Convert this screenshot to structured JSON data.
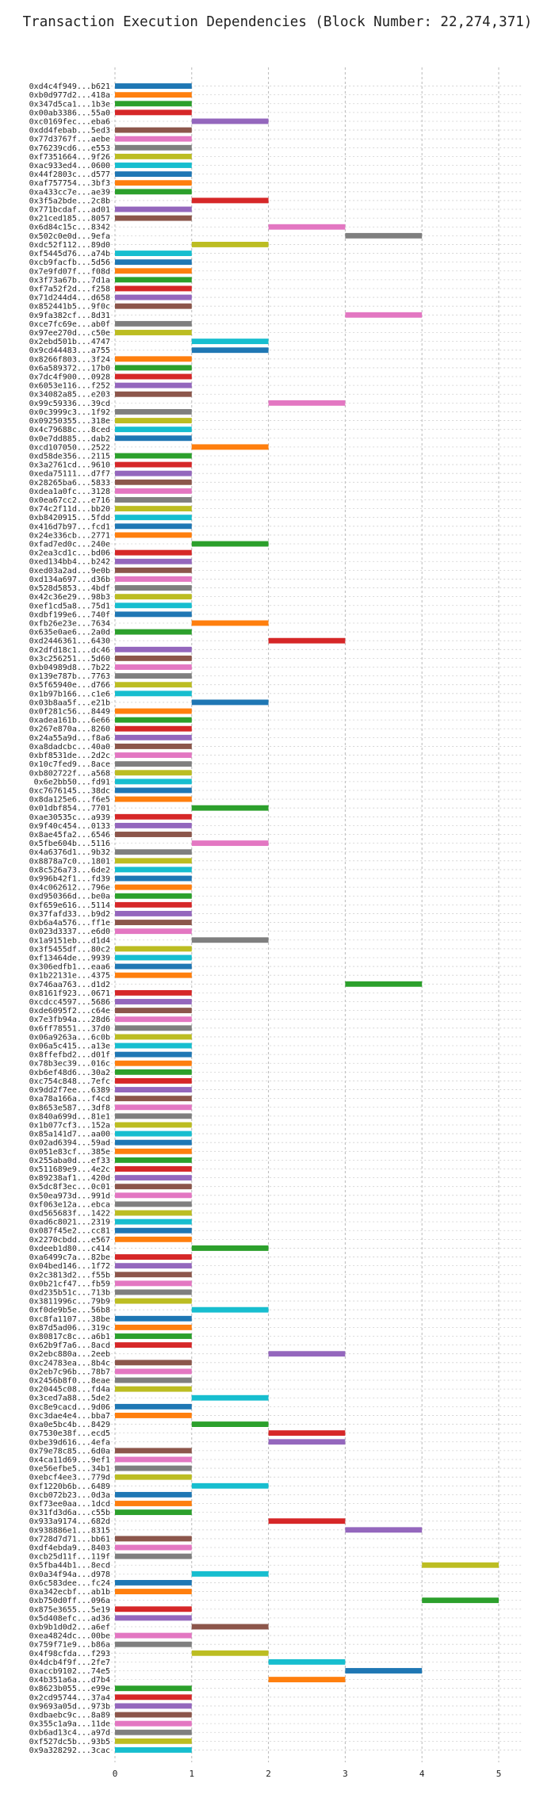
{
  "chart_data": {
    "type": "bar",
    "orientation": "horizontal",
    "title": "Transaction Execution Dependencies (Block Number: 22,274,371)",
    "xlabel": "",
    "ylabel": "",
    "xlim": [
      -0.05,
      5.3
    ],
    "xticks": [
      0,
      1,
      2,
      3,
      4,
      5
    ],
    "grid": true,
    "palette": [
      "#1f77b4",
      "#ff7f0e",
      "#2ca02c",
      "#d62728",
      "#9467bd",
      "#8c564b",
      "#e377c2",
      "#7f7f7f",
      "#bcbd22",
      "#17becf"
    ],
    "transactions": [
      {
        "label": "0xd4c4f949...b621",
        "start": 0,
        "end": 1
      },
      {
        "label": "0xb0d977d2...418a",
        "start": 0,
        "end": 1
      },
      {
        "label": "0x347d5ca1...1b3e",
        "start": 0,
        "end": 1
      },
      {
        "label": "0x00ab3386...55a0",
        "start": 0,
        "end": 1
      },
      {
        "label": "0xc0169fec...eba6",
        "start": 1,
        "end": 2
      },
      {
        "label": "0xdd4febab...5ed3",
        "start": 0,
        "end": 1
      },
      {
        "label": "0x77d3767f...aebe",
        "start": 0,
        "end": 1
      },
      {
        "label": "0x76239cd6...e553",
        "start": 0,
        "end": 1
      },
      {
        "label": "0xf7351664...9f26",
        "start": 0,
        "end": 1
      },
      {
        "label": "0xac933ed4...0600",
        "start": 0,
        "end": 1
      },
      {
        "label": "0x44f2803c...d577",
        "start": 0,
        "end": 1
      },
      {
        "label": "0xaf757754...3bf3",
        "start": 0,
        "end": 1
      },
      {
        "label": "0xa433cc7e...ae39",
        "start": 0,
        "end": 1
      },
      {
        "label": "0x3f5a2bde...2c8b",
        "start": 1,
        "end": 2
      },
      {
        "label": "0x771bcdaf...ad01",
        "start": 0,
        "end": 1
      },
      {
        "label": "0x21ced185...8057",
        "start": 0,
        "end": 1
      },
      {
        "label": "0x6d84c15c...8342",
        "start": 2,
        "end": 3
      },
      {
        "label": "0x502c0e0d...9efa",
        "start": 3,
        "end": 4
      },
      {
        "label": "0xdc52f112...89d0",
        "start": 1,
        "end": 2
      },
      {
        "label": "0xf5445d76...a74b",
        "start": 0,
        "end": 1
      },
      {
        "label": "0xcb9facfb...5d56",
        "start": 0,
        "end": 1
      },
      {
        "label": "0x7e9fd07f...f08d",
        "start": 0,
        "end": 1
      },
      {
        "label": "0x3f73a67b...7d1a",
        "start": 0,
        "end": 1
      },
      {
        "label": "0xf7a52f2d...f258",
        "start": 0,
        "end": 1
      },
      {
        "label": "0x71d244d4...d658",
        "start": 0,
        "end": 1
      },
      {
        "label": "0x852441b5...9f0c",
        "start": 0,
        "end": 1
      },
      {
        "label": "0x9fa382cf...8d31",
        "start": 3,
        "end": 4
      },
      {
        "label": "0xce7fc69e...ab0f",
        "start": 0,
        "end": 1
      },
      {
        "label": "0x97ee270d...c50e",
        "start": 0,
        "end": 1
      },
      {
        "label": "0x2ebd501b...4747",
        "start": 1,
        "end": 2
      },
      {
        "label": "0x9cd44483...a755",
        "start": 1,
        "end": 2
      },
      {
        "label": "0x8266f803...3f24",
        "start": 0,
        "end": 1
      },
      {
        "label": "0x6a589372...17b0",
        "start": 0,
        "end": 1
      },
      {
        "label": "0x7dc4f900...0928",
        "start": 0,
        "end": 1
      },
      {
        "label": "0x6053e116...f252",
        "start": 0,
        "end": 1
      },
      {
        "label": "0x34082a85...e203",
        "start": 0,
        "end": 1
      },
      {
        "label": "0x99c59336...39cd",
        "start": 2,
        "end": 3
      },
      {
        "label": "0x0c3999c3...1f92",
        "start": 0,
        "end": 1
      },
      {
        "label": "0x09250355...318e",
        "start": 0,
        "end": 1
      },
      {
        "label": "0x4c79688c...8ced",
        "start": 0,
        "end": 1
      },
      {
        "label": "0x0e7dd885...dab2",
        "start": 0,
        "end": 1
      },
      {
        "label": "0xcd107050...2522",
        "start": 1,
        "end": 2
      },
      {
        "label": "0xd58de356...2115",
        "start": 0,
        "end": 1
      },
      {
        "label": "0x3a2761cd...9610",
        "start": 0,
        "end": 1
      },
      {
        "label": "0xeda75111...d7f7",
        "start": 0,
        "end": 1
      },
      {
        "label": "0x28265ba6...5833",
        "start": 0,
        "end": 1
      },
      {
        "label": "0xdea1a0fc...3128",
        "start": 0,
        "end": 1
      },
      {
        "label": "0x0ea67cc2...e716",
        "start": 0,
        "end": 1
      },
      {
        "label": "0x74c2f11d...bb20",
        "start": 0,
        "end": 1
      },
      {
        "label": "0xb8420915...5fdd",
        "start": 0,
        "end": 1
      },
      {
        "label": "0x416d7b97...fcd1",
        "start": 0,
        "end": 1
      },
      {
        "label": "0x24e336cb...2771",
        "start": 0,
        "end": 1
      },
      {
        "label": "0xfad7ed0c...240e",
        "start": 1,
        "end": 2
      },
      {
        "label": "0x2ea3cd1c...bd06",
        "start": 0,
        "end": 1
      },
      {
        "label": "0xed134bb4...b242",
        "start": 0,
        "end": 1
      },
      {
        "label": "0xed03a2ad...9e0b",
        "start": 0,
        "end": 1
      },
      {
        "label": "0xd134a697...d36b",
        "start": 0,
        "end": 1
      },
      {
        "label": "0x528d5853...4bdf",
        "start": 0,
        "end": 1
      },
      {
        "label": "0x42c36e29...98b3",
        "start": 0,
        "end": 1
      },
      {
        "label": "0xef1cd5a8...75d1",
        "start": 0,
        "end": 1
      },
      {
        "label": "0xdbf199e6...740f",
        "start": 0,
        "end": 1
      },
      {
        "label": "0xfb26e23e...7634",
        "start": 1,
        "end": 2
      },
      {
        "label": "0x635e0ae6...2a0d",
        "start": 0,
        "end": 1
      },
      {
        "label": "0xd2446361...6430",
        "start": 2,
        "end": 3
      },
      {
        "label": "0x2dfd18c1...dc46",
        "start": 0,
        "end": 1
      },
      {
        "label": "0x3c256251...5d60",
        "start": 0,
        "end": 1
      },
      {
        "label": "0xb04989d8...7b22",
        "start": 0,
        "end": 1
      },
      {
        "label": "0x139e787b...7763",
        "start": 0,
        "end": 1
      },
      {
        "label": "0x5f65940e...d766",
        "start": 0,
        "end": 1
      },
      {
        "label": "0x1b97b166...c1e6",
        "start": 0,
        "end": 1
      },
      {
        "label": "0x03b8aa5f...e21b",
        "start": 1,
        "end": 2
      },
      {
        "label": "0x0f281c56...8449",
        "start": 0,
        "end": 1
      },
      {
        "label": "0xadea161b...6e66",
        "start": 0,
        "end": 1
      },
      {
        "label": "0x267e870a...8260",
        "start": 0,
        "end": 1
      },
      {
        "label": "0x24a55a9d...f8a6",
        "start": 0,
        "end": 1
      },
      {
        "label": "0xa8dadcbc...40a0",
        "start": 0,
        "end": 1
      },
      {
        "label": "0xbf8531de...2d2c",
        "start": 0,
        "end": 1
      },
      {
        "label": "0x10c7fed9...8ace",
        "start": 0,
        "end": 1
      },
      {
        "label": "0xb802722f...a568",
        "start": 0,
        "end": 1
      },
      {
        "label": "0x6e2bb50...fd91",
        "start": 0,
        "end": 1
      },
      {
        "label": "0xc7676145...38dc",
        "start": 0,
        "end": 1
      },
      {
        "label": "0x8da125e6...f6e5",
        "start": 0,
        "end": 1
      },
      {
        "label": "0x01dbf854...7701",
        "start": 1,
        "end": 2
      },
      {
        "label": "0xae30535c...a939",
        "start": 0,
        "end": 1
      },
      {
        "label": "0x9f40c454...0133",
        "start": 0,
        "end": 1
      },
      {
        "label": "0x8ae45fa2...6546",
        "start": 0,
        "end": 1
      },
      {
        "label": "0x5fbe604b...5116",
        "start": 1,
        "end": 2
      },
      {
        "label": "0x4a6376d1...9b32",
        "start": 0,
        "end": 1
      },
      {
        "label": "0x8878a7c0...1801",
        "start": 0,
        "end": 1
      },
      {
        "label": "0x8c526a73...6de2",
        "start": 0,
        "end": 1
      },
      {
        "label": "0x996b42f1...fd39",
        "start": 0,
        "end": 1
      },
      {
        "label": "0x4c062612...796e",
        "start": 0,
        "end": 1
      },
      {
        "label": "0xd950366d...be0a",
        "start": 0,
        "end": 1
      },
      {
        "label": "0xf659e616...5114",
        "start": 0,
        "end": 1
      },
      {
        "label": "0x37fafd33...b9d2",
        "start": 0,
        "end": 1
      },
      {
        "label": "0xb6a4a576...ff1e",
        "start": 0,
        "end": 1
      },
      {
        "label": "0x023d3337...e6d0",
        "start": 0,
        "end": 1
      },
      {
        "label": "0x1a9151eb...d1d4",
        "start": 1,
        "end": 2
      },
      {
        "label": "0x3f5455df...80c2",
        "start": 0,
        "end": 1
      },
      {
        "label": "0xf13464de...9939",
        "start": 0,
        "end": 1
      },
      {
        "label": "0x306edfb1...eaa6",
        "start": 0,
        "end": 1
      },
      {
        "label": "0x1b22131e...4375",
        "start": 0,
        "end": 1
      },
      {
        "label": "0x746aa763...d1d2",
        "start": 3,
        "end": 4
      },
      {
        "label": "0x8161f923...0671",
        "start": 0,
        "end": 1
      },
      {
        "label": "0xcdcc4597...5686",
        "start": 0,
        "end": 1
      },
      {
        "label": "0xde6095f2...c64e",
        "start": 0,
        "end": 1
      },
      {
        "label": "0x7e3fb94a...28d6",
        "start": 0,
        "end": 1
      },
      {
        "label": "0x6ff78551...37d0",
        "start": 0,
        "end": 1
      },
      {
        "label": "0x06a9263a...6c0b",
        "start": 0,
        "end": 1
      },
      {
        "label": "0x06a5c415...a13e",
        "start": 0,
        "end": 1
      },
      {
        "label": "0x8ffefbd2...d01f",
        "start": 0,
        "end": 1
      },
      {
        "label": "0x78b3ec39...016c",
        "start": 0,
        "end": 1
      },
      {
        "label": "0xb6ef48d6...30a2",
        "start": 0,
        "end": 1
      },
      {
        "label": "0xc754c848...7efc",
        "start": 0,
        "end": 1
      },
      {
        "label": "0x9dd2f7ee...6389",
        "start": 0,
        "end": 1
      },
      {
        "label": "0xa78a166a...f4cd",
        "start": 0,
        "end": 1
      },
      {
        "label": "0x8653e587...3df8",
        "start": 0,
        "end": 1
      },
      {
        "label": "0x840a699d...81e1",
        "start": 0,
        "end": 1
      },
      {
        "label": "0x1b077cf3...152a",
        "start": 0,
        "end": 1
      },
      {
        "label": "0x85a141d7...aa00",
        "start": 0,
        "end": 1
      },
      {
        "label": "0x02ad6394...59ad",
        "start": 0,
        "end": 1
      },
      {
        "label": "0x051e83cf...385e",
        "start": 0,
        "end": 1
      },
      {
        "label": "0x255aba0d...ef33",
        "start": 0,
        "end": 1
      },
      {
        "label": "0x511689e9...4e2c",
        "start": 0,
        "end": 1
      },
      {
        "label": "0x89238af1...420d",
        "start": 0,
        "end": 1
      },
      {
        "label": "0x5dc8f3ec...0c01",
        "start": 0,
        "end": 1
      },
      {
        "label": "0x50ea973d...991d",
        "start": 0,
        "end": 1
      },
      {
        "label": "0xf063e12a...ebca",
        "start": 0,
        "end": 1
      },
      {
        "label": "0xd565683f...1422",
        "start": 0,
        "end": 1
      },
      {
        "label": "0xad6c8021...2319",
        "start": 0,
        "end": 1
      },
      {
        "label": "0x087f45e2...cc81",
        "start": 0,
        "end": 1
      },
      {
        "label": "0x2270cbdd...e567",
        "start": 0,
        "end": 1
      },
      {
        "label": "0xdeeb1d80...c414",
        "start": 1,
        "end": 2
      },
      {
        "label": "0xa6499c7a...82be",
        "start": 0,
        "end": 1
      },
      {
        "label": "0x04bed146...1f72",
        "start": 0,
        "end": 1
      },
      {
        "label": "0x2c3813d2...f55b",
        "start": 0,
        "end": 1
      },
      {
        "label": "0x0b21cf47...fb59",
        "start": 0,
        "end": 1
      },
      {
        "label": "0xd235b51c...713b",
        "start": 0,
        "end": 1
      },
      {
        "label": "0x3811996c...79b9",
        "start": 0,
        "end": 1
      },
      {
        "label": "0xf0de9b5e...56b8",
        "start": 1,
        "end": 2
      },
      {
        "label": "0xc8fa1107...38be",
        "start": 0,
        "end": 1
      },
      {
        "label": "0x87d5ad06...319c",
        "start": 0,
        "end": 1
      },
      {
        "label": "0x80817c8c...a6b1",
        "start": 0,
        "end": 1
      },
      {
        "label": "0x62b9f7a6...8acd",
        "start": 0,
        "end": 1
      },
      {
        "label": "0x2ebc880a...2eeb",
        "start": 2,
        "end": 3
      },
      {
        "label": "0xc24783ea...8b4c",
        "start": 0,
        "end": 1
      },
      {
        "label": "0x2eb7c96b...78b7",
        "start": 0,
        "end": 1
      },
      {
        "label": "0x2456b8f0...8eae",
        "start": 0,
        "end": 1
      },
      {
        "label": "0x20445c08...fd4a",
        "start": 0,
        "end": 1
      },
      {
        "label": "0x3ced7a88...5de2",
        "start": 1,
        "end": 2
      },
      {
        "label": "0xc8e9cacd...9d06",
        "start": 0,
        "end": 1
      },
      {
        "label": "0xc3dae4e4...bba7",
        "start": 0,
        "end": 1
      },
      {
        "label": "0xa0e5bc4b...8429",
        "start": 1,
        "end": 2
      },
      {
        "label": "0x7530e38f...ecd5",
        "start": 2,
        "end": 3
      },
      {
        "label": "0xbe39d616...4efa",
        "start": 2,
        "end": 3
      },
      {
        "label": "0x79e78c85...6d0a",
        "start": 0,
        "end": 1
      },
      {
        "label": "0x4ca11d69...9ef1",
        "start": 0,
        "end": 1
      },
      {
        "label": "0xe56efbe5...34b1",
        "start": 0,
        "end": 1
      },
      {
        "label": "0xebcf4ee3...779d",
        "start": 0,
        "end": 1
      },
      {
        "label": "0xf1220b6b...6489",
        "start": 1,
        "end": 2
      },
      {
        "label": "0xcb072b23...0d3a",
        "start": 0,
        "end": 1
      },
      {
        "label": "0xf73ee0aa...1dcd",
        "start": 0,
        "end": 1
      },
      {
        "label": "0x31fd3d6a...c55b",
        "start": 0,
        "end": 1
      },
      {
        "label": "0x933a9174...682d",
        "start": 2,
        "end": 3
      },
      {
        "label": "0x938886e1...8315",
        "start": 3,
        "end": 4
      },
      {
        "label": "0x728d7d71...bb61",
        "start": 0,
        "end": 1
      },
      {
        "label": "0xdf4ebda9...8403",
        "start": 0,
        "end": 1
      },
      {
        "label": "0xcb25d11f...119f",
        "start": 0,
        "end": 1
      },
      {
        "label": "0x5fba44b1...8ecd",
        "start": 4,
        "end": 5
      },
      {
        "label": "0x0a34f94a...d978",
        "start": 1,
        "end": 2
      },
      {
        "label": "0x6c583dee...fc24",
        "start": 0,
        "end": 1
      },
      {
        "label": "0xa342ecbf...ab1b",
        "start": 0,
        "end": 1
      },
      {
        "label": "0xb750d0ff...096a",
        "start": 4,
        "end": 5
      },
      {
        "label": "0x875e3655...5e19",
        "start": 0,
        "end": 1
      },
      {
        "label": "0x5d408efc...ad36",
        "start": 0,
        "end": 1
      },
      {
        "label": "0xb9b1d0d2...a6ef",
        "start": 1,
        "end": 2
      },
      {
        "label": "0xea4824dc...00be",
        "start": 0,
        "end": 1
      },
      {
        "label": "0x759f71e9...b86a",
        "start": 0,
        "end": 1
      },
      {
        "label": "0x4f98cfda...f293",
        "start": 1,
        "end": 2
      },
      {
        "label": "0x4dcb4f9f...2fe7",
        "start": 2,
        "end": 3
      },
      {
        "label": "0xaccb9102...74e5",
        "start": 3,
        "end": 4
      },
      {
        "label": "0x4b351a6a...d7b4",
        "start": 2,
        "end": 3
      },
      {
        "label": "0x8623b055...e99e",
        "start": 0,
        "end": 1
      },
      {
        "label": "0x2cd95744...37a4",
        "start": 0,
        "end": 1
      },
      {
        "label": "0x9693a05d...973b",
        "start": 0,
        "end": 1
      },
      {
        "label": "0xdbaebc9c...8a89",
        "start": 0,
        "end": 1
      },
      {
        "label": "0x355c1a9a...11de",
        "start": 0,
        "end": 1
      },
      {
        "label": "0xb6ad13c4...a97d",
        "start": 0,
        "end": 1
      },
      {
        "label": "0xf527dc5b...93b5",
        "start": 0,
        "end": 1
      },
      {
        "label": "0x9a328292...3cac",
        "start": 0,
        "end": 1
      }
    ]
  }
}
